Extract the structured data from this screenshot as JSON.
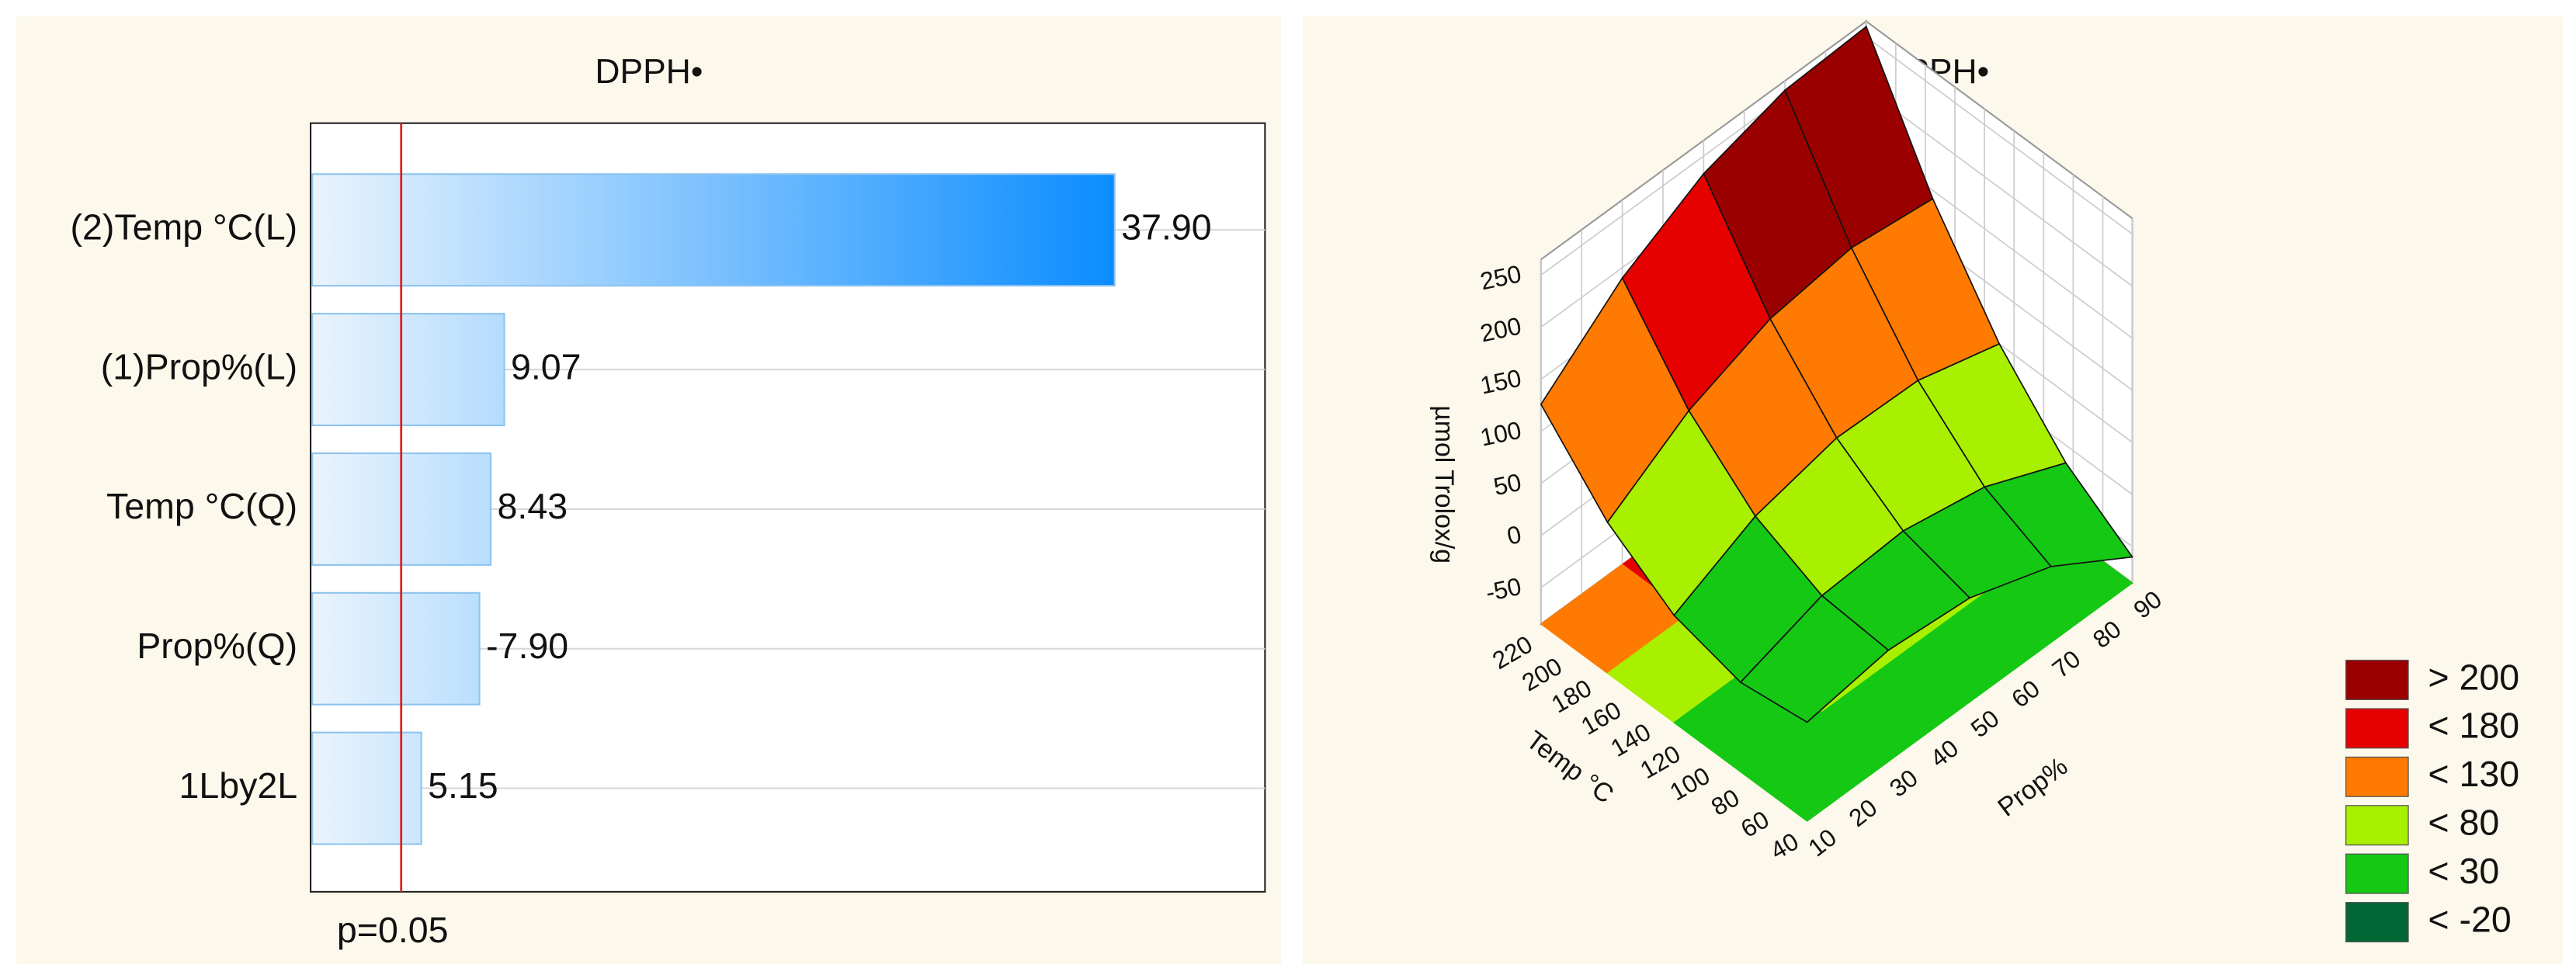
{
  "chart_data": [
    {
      "type": "bar",
      "orientation": "horizontal",
      "title": "DPPH•",
      "categories": [
        "(2)Temp °C(L)",
        "(1)Prop%(L)",
        "Temp °C(Q)",
        "Prop%(Q)",
        "1Lby2L"
      ],
      "values": [
        37.9,
        9.07,
        8.43,
        -7.9,
        5.15
      ],
      "value_labels": [
        "37.90",
        "9.07",
        "8.43",
        "-7.90",
        "5.15"
      ],
      "color": "#0a8cff",
      "xlim": [
        0,
        45
      ],
      "reference_line": {
        "value": 4.2,
        "label": "p=0.05",
        "color": "#e0201b"
      }
    },
    {
      "type": "surface",
      "title": "DPPH•",
      "xlabel": "Prop%",
      "ylabel": "Temp °C",
      "zlabel": "µmol Trolox/g",
      "x": [
        10,
        30,
        50,
        70,
        90
      ],
      "y": [
        40,
        85,
        130,
        175,
        220
      ],
      "z": [
        [
          10,
          22,
          15,
          -12,
          -60
        ],
        [
          1,
          27,
          32,
          17,
          -17
        ],
        [
          18,
          56,
          74,
          72,
          50
        ],
        [
          60,
          110,
          141,
          152,
          142
        ],
        [
          126,
          190,
          233,
          256,
          260
        ]
      ],
      "xlim": [
        10,
        90
      ],
      "ylim": [
        40,
        220
      ],
      "zlim": [
        -85,
        265
      ],
      "xticks": [
        10,
        20,
        30,
        40,
        50,
        60,
        70,
        80,
        90
      ],
      "yticks": [
        40,
        60,
        80,
        100,
        120,
        140,
        160,
        180,
        200,
        220
      ],
      "zticks": [
        -50,
        0,
        50,
        100,
        150,
        200,
        250
      ],
      "legend": [
        {
          "value": 200,
          "label": "> 200",
          "color": "#9b0000"
        },
        {
          "value": 180,
          "label": "< 180",
          "color": "#e60000"
        },
        {
          "value": 130,
          "label": "< 130",
          "color": "#ff7a00"
        },
        {
          "value": 80,
          "label": "< 80",
          "color": "#a8f000"
        },
        {
          "value": 30,
          "label": "< 30",
          "color": "#14c814"
        },
        {
          "value": -20,
          "label": "< -20",
          "color": "#006633"
        }
      ]
    }
  ]
}
